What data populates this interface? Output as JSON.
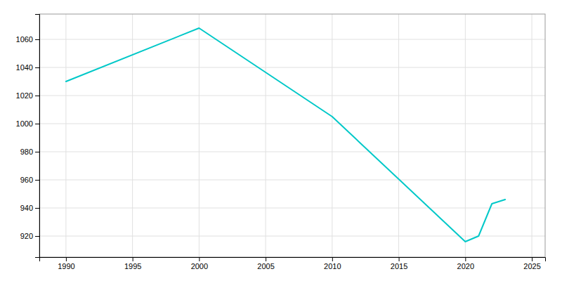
{
  "chart_data": {
    "type": "line",
    "x": [
      1990,
      2000,
      2010,
      2020,
      2021,
      2022,
      2023
    ],
    "values": [
      1030,
      1068,
      1005,
      916,
      920,
      943,
      946
    ],
    "color": "#00C8C8",
    "xlim": [
      1988,
      2026
    ],
    "ylim": [
      905,
      1078
    ],
    "xticks": [
      1990,
      1995,
      2000,
      2005,
      2010,
      2015,
      2020,
      2025
    ],
    "yticks": [
      920,
      940,
      960,
      980,
      1000,
      1020,
      1040,
      1060
    ],
    "grid": true
  }
}
